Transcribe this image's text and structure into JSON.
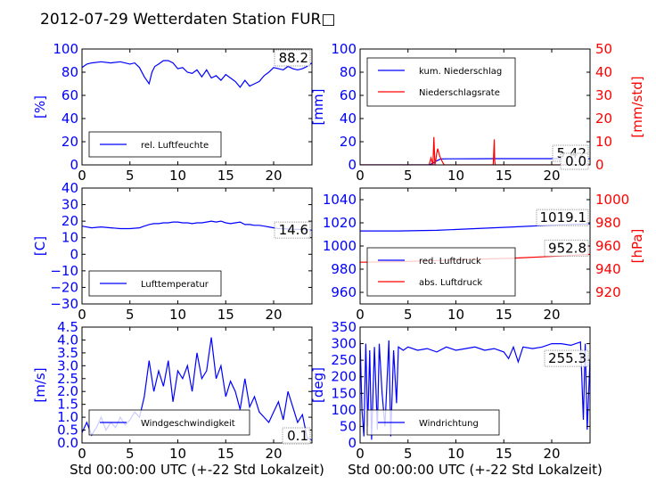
{
  "title": "2012-07-29 Wetterdaten Station FUR□",
  "xlabel": "Std 00:00:00 UTC (+-22 Std Lokalzeit)",
  "colors": {
    "primary": "#0000ff",
    "secondary": "#ff0000",
    "axis": "#000000"
  },
  "chart_data": [
    {
      "type": "line",
      "xlim": [
        0,
        24
      ],
      "ylim": [
        0,
        100
      ],
      "yticks": [
        "0",
        "20",
        "40",
        "60",
        "80",
        "100"
      ],
      "xticks": [
        "0",
        "5",
        "10",
        "15",
        "20"
      ],
      "ylabel": "[%]",
      "show_xlabel": false,
      "last_value": "88.2",
      "legend_position": "lower-left",
      "series": [
        {
          "name": "rel. Luftfeuchte",
          "color": "#0000ff",
          "axis": "left",
          "x": [
            0,
            0.5,
            1,
            2,
            3,
            4,
            5,
            5.5,
            6,
            6.5,
            7,
            7.3,
            7.6,
            8,
            8.5,
            9,
            9.5,
            10,
            10.5,
            11,
            11.5,
            12,
            12.5,
            13,
            13.5,
            14,
            14.5,
            15,
            15.5,
            16,
            16.5,
            17,
            17.5,
            18,
            18.5,
            19,
            19.5,
            20,
            20.5,
            21,
            21.5,
            22,
            22.5,
            23,
            23.5,
            24
          ],
          "y": [
            84,
            87,
            88,
            89,
            88,
            89,
            87,
            88,
            84,
            76,
            70,
            80,
            85,
            87,
            90,
            90,
            88,
            83,
            84,
            80,
            79,
            82,
            76,
            82,
            75,
            77,
            73,
            78,
            75,
            72,
            67,
            73,
            68,
            70,
            72,
            77,
            80,
            84,
            83,
            82,
            85,
            83,
            82,
            83,
            85,
            88
          ]
        }
      ]
    },
    {
      "type": "line",
      "xlim": [
        0,
        24
      ],
      "ylim": [
        0,
        100
      ],
      "ylim_right": [
        0,
        50
      ],
      "yticks": [
        "0",
        "20",
        "40",
        "60",
        "80",
        "100"
      ],
      "yticks_right": [
        "0",
        "10",
        "20",
        "30",
        "40",
        "50"
      ],
      "xticks": [
        "0",
        "5",
        "10",
        "15",
        "20"
      ],
      "ylabel": "[mm]",
      "ylabel_right": "[mm/std]",
      "show_xlabel": false,
      "last_value": "5.42",
      "last_value_right": "0.0",
      "legend_position": "top-left",
      "series": [
        {
          "name": "kum. Niederschlag",
          "color": "#0000ff",
          "axis": "left",
          "x": [
            0,
            7.2,
            7.6,
            8,
            8.4,
            9,
            12,
            14,
            14.3,
            20,
            24
          ],
          "y": [
            0,
            0,
            1.5,
            3.5,
            5.1,
            5.2,
            5.3,
            5.4,
            5.42,
            5.42,
            5.42
          ]
        },
        {
          "name": "Niederschlagsrate",
          "color": "#ff0000",
          "axis": "right",
          "x": [
            0,
            7.2,
            7.4,
            7.6,
            7.7,
            7.8,
            7.9,
            8,
            8.1,
            8.3,
            8.5,
            8.7,
            8.8,
            9,
            13.9,
            14,
            14.05,
            14.1,
            24
          ],
          "y": [
            0,
            0,
            3,
            0,
            12,
            0,
            2,
            5,
            7,
            4,
            2,
            0.5,
            0,
            0,
            0,
            11,
            2,
            0,
            0
          ]
        }
      ]
    },
    {
      "type": "line",
      "xlim": [
        0,
        24
      ],
      "ylim": [
        -30,
        40
      ],
      "yticks": [
        "−30",
        "−20",
        "−10",
        "0",
        "10",
        "20",
        "30",
        "40"
      ],
      "xticks": [
        "0",
        "5",
        "10",
        "15",
        "20"
      ],
      "ylabel": "[C]",
      "show_xlabel": false,
      "last_value": "14.6",
      "legend_position": "lower-left",
      "series": [
        {
          "name": "Lufttemperatur",
          "color": "#0000ff",
          "axis": "left",
          "x": [
            0,
            1,
            2,
            3,
            4,
            5,
            6,
            6.5,
            7,
            7.5,
            8,
            8.5,
            9,
            9.5,
            10,
            10.5,
            11,
            11.5,
            12,
            12.5,
            13,
            13.5,
            14,
            14.5,
            15,
            15.5,
            16,
            16.5,
            17,
            17.5,
            18,
            18.5,
            19,
            19.5,
            20,
            20.5,
            21,
            22,
            23,
            24
          ],
          "y": [
            17,
            16,
            16.5,
            16,
            15.5,
            15.5,
            16,
            17,
            18,
            18.5,
            18.5,
            19,
            19,
            19.5,
            19.5,
            19,
            19,
            18.5,
            19,
            19,
            19.5,
            20,
            19.5,
            20,
            19,
            18.5,
            19,
            19.5,
            18,
            18,
            17.5,
            17.5,
            17,
            16.5,
            16,
            15.5,
            15.5,
            15,
            15,
            14.6
          ]
        }
      ]
    },
    {
      "type": "line",
      "xlim": [
        0,
        24
      ],
      "ylim": [
        950,
        1050
      ],
      "ylim_right": [
        910,
        1010
      ],
      "yticks": [
        "960",
        "980",
        "1000",
        "1020",
        "1040"
      ],
      "yticks_right": [
        "920",
        "940",
        "960",
        "980",
        "1000"
      ],
      "xticks": [
        "0",
        "5",
        "10",
        "15",
        "20"
      ],
      "ylabel": "",
      "ylabel_right": "[hPa]",
      "show_xlabel": false,
      "last_value": "1019.1",
      "last_value_right": "952.8",
      "legend_position": "lower-left",
      "series": [
        {
          "name": "red. Luftdruck",
          "color": "#0000ff",
          "axis": "left",
          "x": [
            0,
            4,
            8,
            12,
            16,
            20,
            24
          ],
          "y": [
            1013,
            1013,
            1013.5,
            1015,
            1016.5,
            1018,
            1019.1
          ]
        },
        {
          "name": "abs. Luftdruck",
          "color": "#ff0000",
          "axis": "right",
          "x": [
            0,
            4,
            8,
            12,
            16,
            20,
            24
          ],
          "y": [
            946,
            946.5,
            947.5,
            948.5,
            949.5,
            951,
            952.8
          ]
        }
      ]
    },
    {
      "type": "line",
      "xlim": [
        0,
        24
      ],
      "ylim": [
        0,
        4.5
      ],
      "yticks": [
        "0.0",
        "0.5",
        "1.0",
        "1.5",
        "2.0",
        "2.5",
        "3.0",
        "3.5",
        "4.0",
        "4.5"
      ],
      "xticks": [
        "0",
        "5",
        "10",
        "15",
        "20"
      ],
      "ylabel": "[m/s]",
      "show_xlabel": true,
      "last_value": "0.1",
      "legend_position": "lower-left",
      "series": [
        {
          "name": "Windgeschwindigkeit",
          "color": "#0000ff",
          "axis": "left",
          "x": [
            0,
            0.5,
            1,
            1.5,
            2,
            2.5,
            3,
            3.5,
            4,
            4.5,
            5,
            5.5,
            6,
            6.5,
            7,
            7.5,
            8,
            8.5,
            9,
            9.5,
            10,
            10.5,
            11,
            11.5,
            12,
            12.5,
            13,
            13.5,
            14,
            14.5,
            15,
            15.5,
            16,
            16.5,
            17,
            17.5,
            18,
            18.5,
            19,
            19.5,
            20,
            20.5,
            21,
            21.5,
            22,
            22.5,
            23,
            23.5,
            24
          ],
          "y": [
            0.4,
            0.8,
            0.3,
            0.6,
            1.0,
            0.5,
            0.8,
            0.6,
            1.0,
            0.7,
            0.9,
            1.2,
            1.0,
            1.8,
            3.2,
            2.0,
            2.8,
            2.2,
            3.2,
            1.6,
            2.8,
            2.5,
            3.0,
            2.0,
            3.5,
            2.5,
            2.8,
            4.1,
            2.5,
            3.0,
            1.8,
            2.4,
            2.0,
            1.3,
            2.5,
            1.4,
            1.8,
            1.2,
            1.0,
            0.8,
            1.2,
            1.6,
            0.9,
            2.0,
            1.4,
            0.8,
            1.1,
            0.2,
            0.1
          ]
        }
      ]
    },
    {
      "type": "line",
      "xlim": [
        0,
        24
      ],
      "ylim": [
        0,
        350
      ],
      "yticks": [
        "0",
        "50",
        "100",
        "150",
        "200",
        "250",
        "300",
        "350"
      ],
      "xticks": [
        "0",
        "5",
        "10",
        "15",
        "20"
      ],
      "ylabel": "[deg]",
      "show_xlabel": true,
      "last_value": "255.3",
      "legend_position": "lower-left",
      "series": [
        {
          "name": "Windrichtung",
          "color": "#0000ff",
          "axis": "left",
          "x": [
            0,
            0.2,
            0.4,
            0.6,
            0.8,
            1,
            1.2,
            1.5,
            1.8,
            2,
            2.3,
            2.6,
            3,
            3.2,
            3.5,
            3.8,
            4,
            4.5,
            5,
            6,
            7,
            8,
            9,
            10,
            11,
            12,
            13,
            14,
            15,
            15.5,
            16,
            16.5,
            17,
            18,
            19,
            20,
            21,
            22,
            23,
            23.3,
            23.5,
            23.7,
            24
          ],
          "y": [
            310,
            100,
            20,
            300,
            50,
            280,
            10,
            290,
            40,
            300,
            150,
            50,
            310,
            20,
            280,
            120,
            290,
            280,
            290,
            280,
            285,
            275,
            290,
            280,
            285,
            290,
            280,
            285,
            275,
            255,
            290,
            245,
            290,
            285,
            290,
            300,
            300,
            295,
            305,
            70,
            300,
            40,
            255
          ]
        }
      ]
    }
  ]
}
